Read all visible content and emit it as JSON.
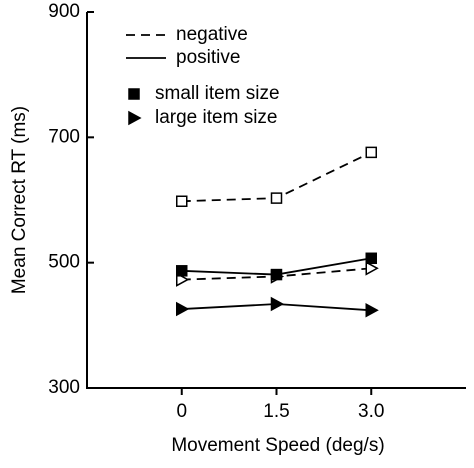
{
  "chart_data": {
    "type": "line",
    "x_label": "Movement Speed (deg/s)",
    "y_label": "Mean Correct RT (ms)",
    "x": [
      0,
      1.5,
      3
    ],
    "xlim": [
      -1.5,
      4.5
    ],
    "xticks": [
      0,
      1.5,
      {
        "value": 3,
        "label": "3.0"
      }
    ],
    "ylim": [
      300,
      900
    ],
    "yticks": [
      300,
      500,
      700,
      900
    ],
    "color": "#000000",
    "legend": [
      {
        "label": "negative",
        "line": "dashed"
      },
      {
        "label": "positive",
        "line": "solid"
      },
      {
        "label": "small item size",
        "marker": "square"
      },
      {
        "label": "large item size",
        "marker": "triangle"
      }
    ],
    "series": [
      {
        "line": "dashed",
        "marker": "square",
        "filled": false,
        "values": [
          598,
          603,
          676
        ]
      },
      {
        "line": "dashed",
        "marker": "triangle",
        "filled": false,
        "values": [
          473,
          478,
          491
        ]
      },
      {
        "line": "solid",
        "marker": "square",
        "filled": true,
        "values": [
          487,
          481,
          507
        ]
      },
      {
        "line": "solid",
        "marker": "triangle",
        "filled": true,
        "values": [
          426,
          434,
          424
        ]
      }
    ]
  }
}
